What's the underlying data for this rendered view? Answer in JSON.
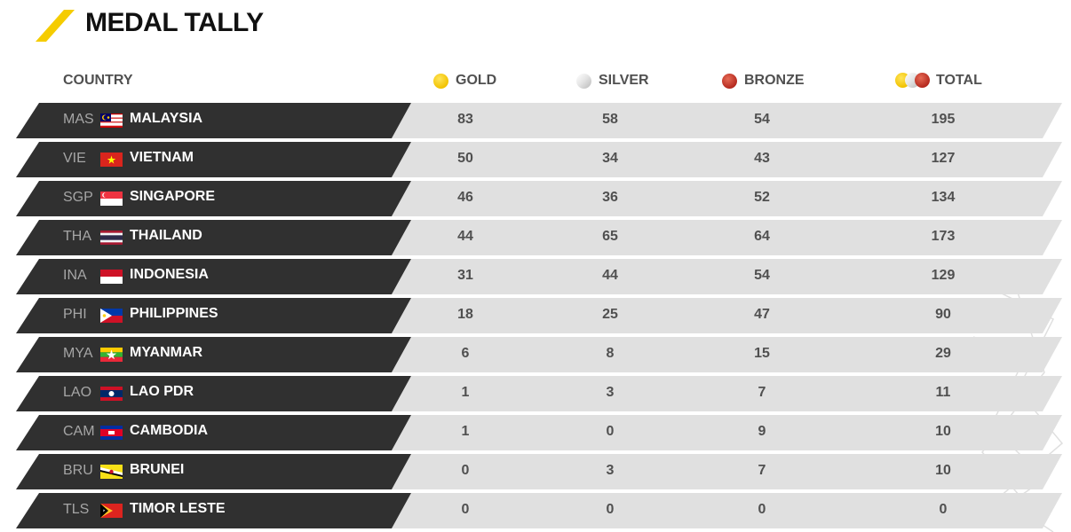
{
  "title": "MEDAL TALLY",
  "colors": {
    "accent": "#f5cc00",
    "row_dark": "#303030",
    "row_light": "#e0e0e0",
    "gold": "#f2c200",
    "silver": "#c8c8c8",
    "bronze": "#c0392b"
  },
  "header": {
    "country": "COUNTRY",
    "gold": "GOLD",
    "silver": "SILVER",
    "bronze": "BRONZE",
    "total": "TOTAL"
  },
  "rows": [
    {
      "code": "MAS",
      "country": "MALAYSIA",
      "flag": "malaysia-flag-icon",
      "gold": "83",
      "silver": "58",
      "bronze": "54",
      "total": "195"
    },
    {
      "code": "VIE",
      "country": "VIETNAM",
      "flag": "vietnam-flag-icon",
      "gold": "50",
      "silver": "34",
      "bronze": "43",
      "total": "127"
    },
    {
      "code": "SGP",
      "country": "SINGAPORE",
      "flag": "singapore-flag-icon",
      "gold": "46",
      "silver": "36",
      "bronze": "52",
      "total": "134"
    },
    {
      "code": "THA",
      "country": "THAILAND",
      "flag": "thailand-flag-icon",
      "gold": "44",
      "silver": "65",
      "bronze": "64",
      "total": "173"
    },
    {
      "code": "INA",
      "country": "INDONESIA",
      "flag": "indonesia-flag-icon",
      "gold": "31",
      "silver": "44",
      "bronze": "54",
      "total": "129"
    },
    {
      "code": "PHI",
      "country": "PHILIPPINES",
      "flag": "philippines-flag-icon",
      "gold": "18",
      "silver": "25",
      "bronze": "47",
      "total": "90"
    },
    {
      "code": "MYA",
      "country": "MYANMAR",
      "flag": "myanmar-flag-icon",
      "gold": "6",
      "silver": "8",
      "bronze": "15",
      "total": "29"
    },
    {
      "code": "LAO",
      "country": "LAO PDR",
      "flag": "laos-flag-icon",
      "gold": "1",
      "silver": "3",
      "bronze": "7",
      "total": "11"
    },
    {
      "code": "CAM",
      "country": "CAMBODIA",
      "flag": "cambodia-flag-icon",
      "gold": "1",
      "silver": "0",
      "bronze": "9",
      "total": "10"
    },
    {
      "code": "BRU",
      "country": "BRUNEI",
      "flag": "brunei-flag-icon",
      "gold": "0",
      "silver": "3",
      "bronze": "7",
      "total": "10"
    },
    {
      "code": "TLS",
      "country": "TIMOR LESTE",
      "flag": "timor-leste-flag-icon",
      "gold": "0",
      "silver": "0",
      "bronze": "0",
      "total": "0"
    }
  ]
}
